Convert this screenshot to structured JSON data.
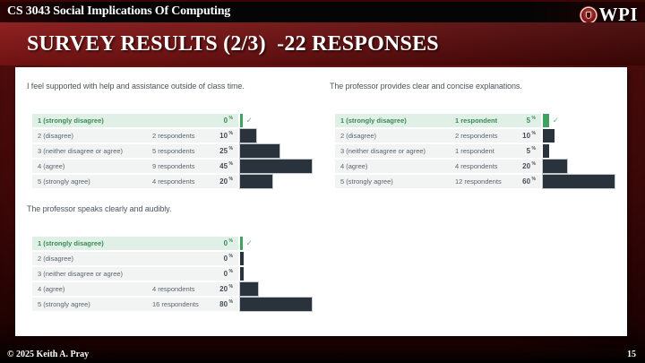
{
  "header": {
    "course": "CS 3043 Social Implications Of Computing",
    "logo_text": "WPI"
  },
  "slide_title": "SURVEY RESULTS (2/3)  -22 RESPONSES",
  "footer": {
    "copyright": "© 2025 Keith A. Pray",
    "page_number": "15"
  },
  "colors": {
    "brand_maroon": "#6d1010",
    "accent_green": "#3da35f",
    "highlight_row_bg": "#e0f0e6",
    "bar_dark": "#2a323b",
    "row_bg": "#f2f3f3"
  },
  "chart_data": [
    {
      "type": "bar",
      "title": "I feel supported with help and assistance outside of class time.",
      "categories": [
        "1 (strongly disagree)",
        "2 (disagree)",
        "3 (neither disagree or agree)",
        "4 (agree)",
        "5 (strongly agree)"
      ],
      "respondents": [
        0,
        2,
        5,
        9,
        4
      ],
      "respondent_labels": [
        "",
        "2 respondents",
        "5 respondents",
        "9 respondents",
        "4 respondents"
      ],
      "percents": [
        0,
        10,
        25,
        45,
        20
      ],
      "highlighted_index": 0,
      "xlim": [
        0,
        100
      ],
      "bar_scale": "relative-to-max"
    },
    {
      "type": "bar",
      "title": "The professor provides clear and concise explanations.",
      "categories": [
        "1 (strongly disagree)",
        "2 (disagree)",
        "3 (neither disagree or agree)",
        "4 (agree)",
        "5 (strongly agree)"
      ],
      "respondents": [
        1,
        2,
        1,
        4,
        12
      ],
      "respondent_labels": [
        "1 respondent",
        "2 respondents",
        "1 respondent",
        "4 respondents",
        "12 respondents"
      ],
      "percents": [
        5,
        10,
        5,
        20,
        60
      ],
      "highlighted_index": 0,
      "xlim": [
        0,
        100
      ],
      "bar_scale": "relative-to-max"
    },
    {
      "type": "bar",
      "title": "The professor speaks clearly and audibly.",
      "categories": [
        "1 (strongly disagree)",
        "2 (disagree)",
        "3 (neither disagree or agree)",
        "4 (agree)",
        "5 (strongly agree)"
      ],
      "respondents": [
        0,
        0,
        0,
        4,
        16
      ],
      "respondent_labels": [
        "",
        "",
        "",
        "4 respondents",
        "16 respondents"
      ],
      "percents": [
        0,
        0,
        0,
        20,
        80
      ],
      "highlighted_index": 0,
      "xlim": [
        0,
        100
      ],
      "bar_scale": "relative-to-max"
    }
  ]
}
